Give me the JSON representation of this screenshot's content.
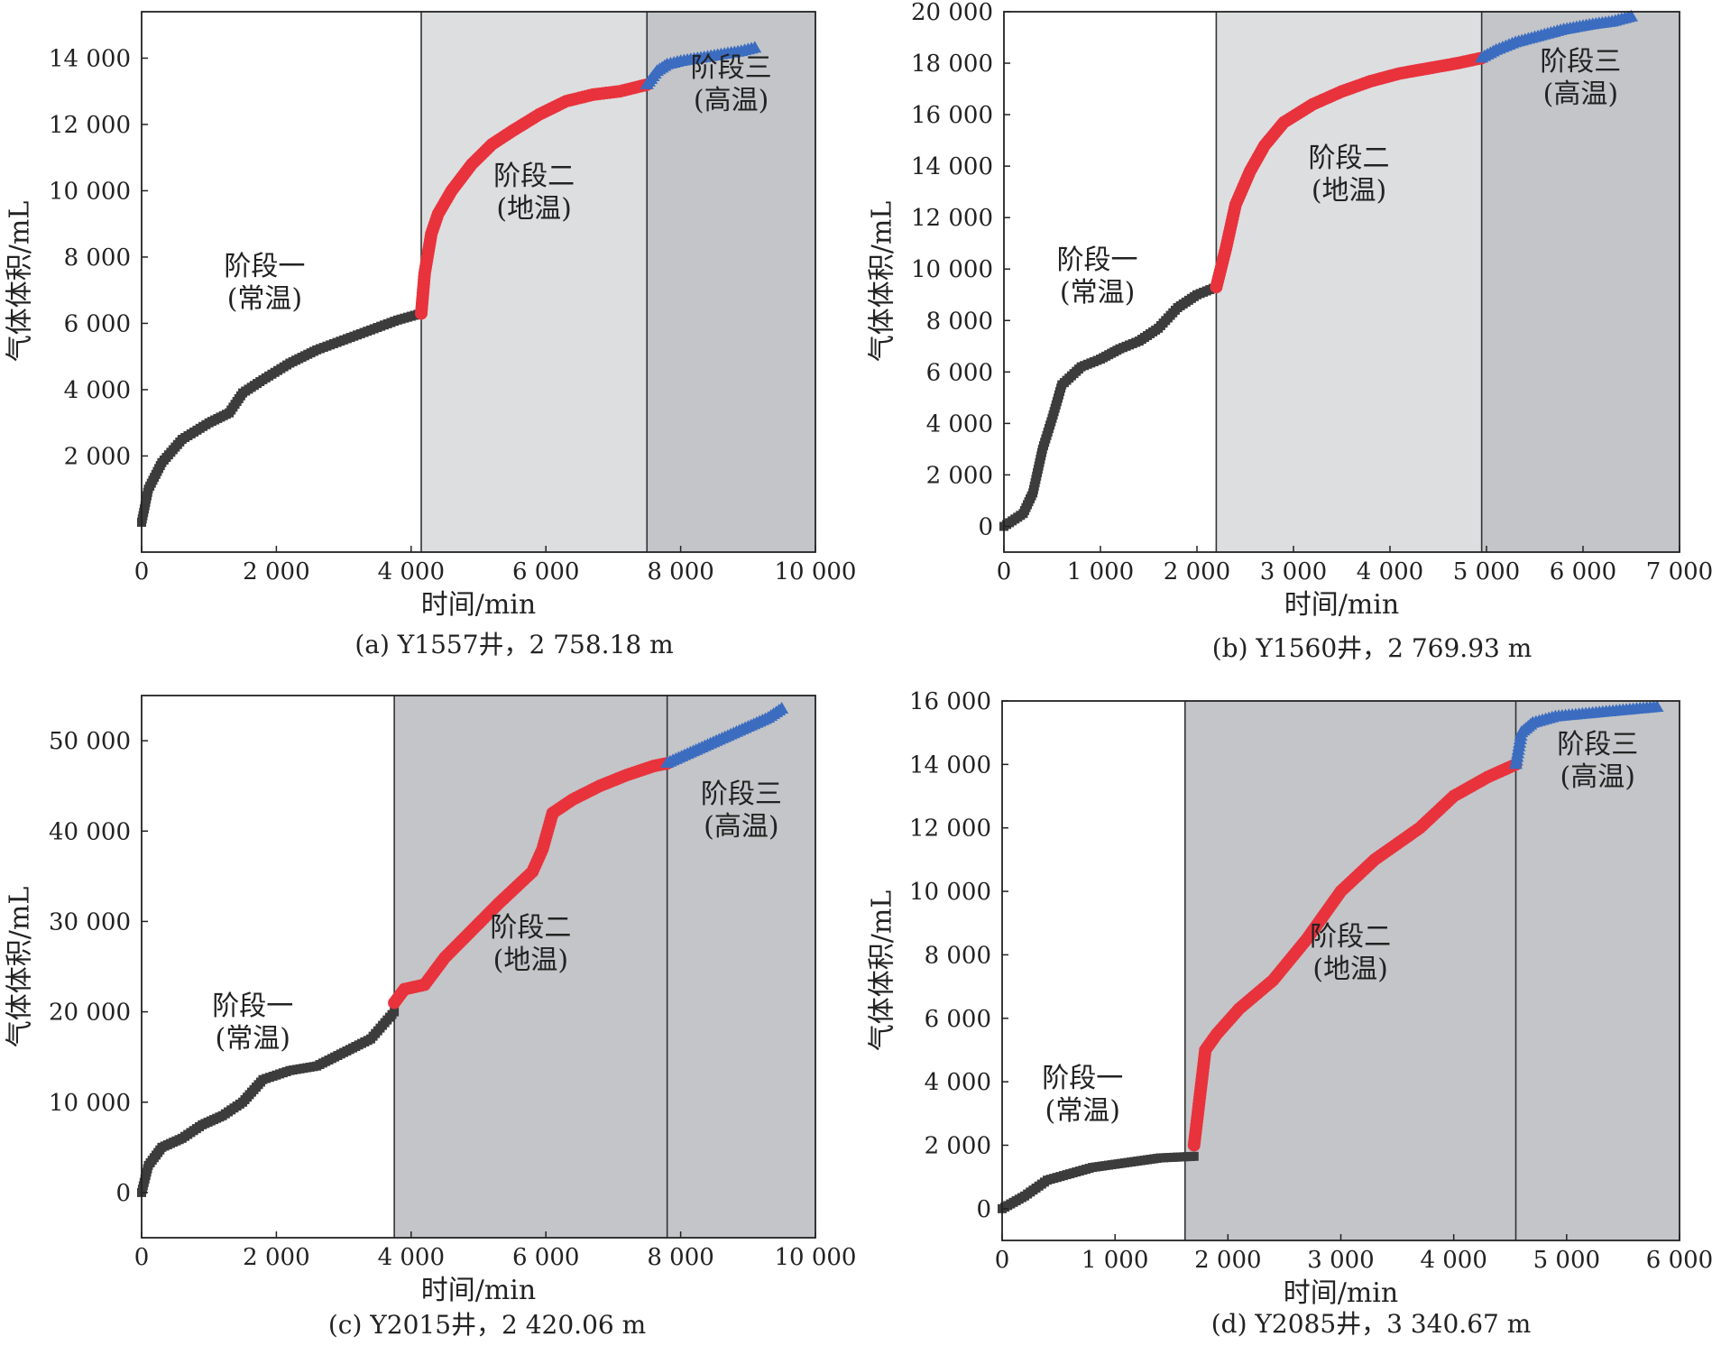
{
  "chart_data": [
    {
      "type": "scatter",
      "caption": "(a) Y1557井，2 758.18 m",
      "xlabel": "时间/min",
      "ylabel": "气体体积/mL",
      "xlim": [
        0,
        10000
      ],
      "ylim": [
        -900,
        15400
      ],
      "xticks": [
        0,
        2000,
        4000,
        6000,
        8000,
        10000
      ],
      "xtick_labels": [
        "0",
        "2 000",
        "4 000",
        "6 000",
        "8 000",
        "10 000"
      ],
      "yticks": [
        2000,
        4000,
        6000,
        8000,
        10000,
        12000,
        14000
      ],
      "ytick_labels": [
        "2 000",
        "4 000",
        "6 000",
        "8 000",
        "10 000",
        "12 000",
        "14 000"
      ],
      "stages": [
        {
          "name": "阶段一",
          "condition": "(常温)",
          "x_range": [
            0,
            4150
          ],
          "shade": "#ffffff"
        },
        {
          "name": "阶段二",
          "condition": "(地温)",
          "x_range": [
            4150,
            7500
          ],
          "shade": "#dddee0"
        },
        {
          "name": "阶段三",
          "condition": "(高温)",
          "x_range": [
            7500,
            10000
          ],
          "shade": "#c4c5c8"
        }
      ],
      "series": [
        {
          "color": "#3c3c3c",
          "marker": "square",
          "x": [
            0,
            100,
            300,
            600,
            1000,
            1300,
            1500,
            1800,
            2200,
            2600,
            3000,
            3400,
            3800,
            4150
          ],
          "y": [
            0,
            1000,
            1800,
            2500,
            3000,
            3300,
            3900,
            4300,
            4800,
            5200,
            5500,
            5800,
            6100,
            6300
          ]
        },
        {
          "color": "#e8333c",
          "marker": "circle",
          "x": [
            4150,
            4200,
            4300,
            4400,
            4600,
            4900,
            5200,
            5500,
            5900,
            6300,
            6700,
            7100,
            7500
          ],
          "y": [
            6300,
            7500,
            8700,
            9300,
            10000,
            10800,
            11400,
            11800,
            12300,
            12700,
            12900,
            13000,
            13200
          ]
        },
        {
          "color": "#3b6cc0",
          "marker": "triangle",
          "x": [
            7500,
            7650,
            7800,
            8000,
            8300,
            8600,
            8900,
            9100
          ],
          "y": [
            13200,
            13600,
            13800,
            13900,
            14000,
            14100,
            14200,
            14300
          ]
        }
      ]
    },
    {
      "type": "scatter",
      "caption": "(b) Y1560井，2 769.93 m",
      "xlabel": "时间/min",
      "ylabel": "气体体积/mL",
      "xlim": [
        0,
        7000
      ],
      "ylim": [
        -1000,
        20000
      ],
      "xticks": [
        0,
        1000,
        2000,
        3000,
        4000,
        5000,
        6000,
        7000
      ],
      "xtick_labels": [
        "0",
        "1 000",
        "2 000",
        "3 000",
        "4 000",
        "5 000",
        "6 000",
        "7 000"
      ],
      "yticks": [
        0,
        2000,
        4000,
        6000,
        8000,
        10000,
        12000,
        14000,
        16000,
        18000,
        20000
      ],
      "ytick_labels": [
        "0",
        "2 000",
        "4 000",
        "6 000",
        "8 000",
        "10 000",
        "12 000",
        "14 000",
        "16 000",
        "18 000",
        "20 000"
      ],
      "stages": [
        {
          "name": "阶段一",
          "condition": "(常温)",
          "x_range": [
            0,
            2200
          ],
          "shade": "#ffffff"
        },
        {
          "name": "阶段二",
          "condition": "(地温)",
          "x_range": [
            2200,
            4950
          ],
          "shade": "#dddee0"
        },
        {
          "name": "阶段三",
          "condition": "(高温)",
          "x_range": [
            4950,
            7000
          ],
          "shade": "#c4c5c8"
        }
      ],
      "series": [
        {
          "color": "#3c3c3c",
          "marker": "square",
          "x": [
            0,
            200,
            300,
            400,
            500,
            600,
            800,
            1000,
            1200,
            1400,
            1600,
            1800,
            2000,
            2200
          ],
          "y": [
            0,
            500,
            1300,
            3000,
            4200,
            5500,
            6200,
            6500,
            6900,
            7200,
            7700,
            8500,
            9000,
            9300
          ]
        },
        {
          "color": "#e8333c",
          "marker": "circle",
          "x": [
            2200,
            2300,
            2400,
            2550,
            2700,
            2900,
            3200,
            3500,
            3800,
            4100,
            4400,
            4700,
            4950
          ],
          "y": [
            9300,
            10800,
            12500,
            13800,
            14800,
            15700,
            16400,
            16900,
            17300,
            17600,
            17800,
            18000,
            18200
          ]
        },
        {
          "color": "#3b6cc0",
          "marker": "triangle",
          "x": [
            4950,
            5100,
            5300,
            5500,
            5800,
            6100,
            6300,
            6500
          ],
          "y": [
            18200,
            18500,
            18800,
            19000,
            19300,
            19500,
            19600,
            19800
          ]
        }
      ]
    },
    {
      "type": "scatter",
      "caption": "(c) Y2015井，2 420.06 m",
      "xlabel": "时间/min",
      "ylabel": "气体体积/mL",
      "xlim": [
        0,
        10000
      ],
      "ylim": [
        -5000,
        55000
      ],
      "xticks": [
        0,
        2000,
        4000,
        6000,
        8000,
        10000
      ],
      "xtick_labels": [
        "0",
        "2 000",
        "4 000",
        "6 000",
        "8 000",
        "10 000"
      ],
      "yticks": [
        0,
        10000,
        20000,
        30000,
        40000,
        50000
      ],
      "ytick_labels": [
        "0",
        "10 000",
        "20 000",
        "30 000",
        "40 000",
        "50 000"
      ],
      "stages": [
        {
          "name": "阶段一",
          "condition": "(常温)",
          "x_range": [
            0,
            3750
          ],
          "shade": "#ffffff"
        },
        {
          "name": "阶段二",
          "condition": "(地温)",
          "x_range": [
            3750,
            7800
          ],
          "shade": "#c4c5c8"
        },
        {
          "name": "阶段三",
          "condition": "(高温)",
          "x_range": [
            7800,
            10000
          ],
          "shade": "#c4c5c8"
        }
      ],
      "series": [
        {
          "color": "#3c3c3c",
          "marker": "square",
          "x": [
            0,
            100,
            300,
            600,
            900,
            1200,
            1500,
            1800,
            2200,
            2600,
            3000,
            3400,
            3750
          ],
          "y": [
            0,
            3000,
            5000,
            6000,
            7500,
            8500,
            10000,
            12500,
            13500,
            14000,
            15500,
            17000,
            20000
          ]
        },
        {
          "color": "#e8333c",
          "marker": "circle",
          "x": [
            3750,
            3900,
            4200,
            4500,
            4900,
            5300,
            5800,
            5950,
            6100,
            6400,
            6800,
            7200,
            7600,
            7800
          ],
          "y": [
            21000,
            22500,
            23000,
            26000,
            29000,
            32000,
            35500,
            38000,
            42000,
            43500,
            45000,
            46200,
            47200,
            47500
          ]
        },
        {
          "color": "#3b6cc0",
          "marker": "triangle",
          "x": [
            7800,
            8100,
            8400,
            8700,
            9000,
            9300,
            9500
          ],
          "y": [
            47500,
            48500,
            49500,
            50500,
            51500,
            52500,
            53500
          ]
        }
      ]
    },
    {
      "type": "scatter",
      "caption": "(d) Y2085井，3 340.67 m",
      "xlabel": "时间/min",
      "ylabel": "气体体积/mL",
      "xlim": [
        0,
        6000
      ],
      "ylim": [
        -1000,
        16000
      ],
      "xticks": [
        0,
        1000,
        2000,
        3000,
        4000,
        5000,
        6000
      ],
      "xtick_labels": [
        "0",
        "1 000",
        "2 000",
        "3 000",
        "4 000",
        "5 000",
        "6 000"
      ],
      "yticks": [
        0,
        2000,
        4000,
        6000,
        8000,
        10000,
        12000,
        14000,
        16000
      ],
      "ytick_labels": [
        "0",
        "2 000",
        "4 000",
        "6 000",
        "8 000",
        "10 000",
        "12 000",
        "14 000",
        "16 000"
      ],
      "stages": [
        {
          "name": "阶段一",
          "condition": "(常温)",
          "x_range": [
            0,
            1620
          ],
          "shade": "#ffffff"
        },
        {
          "name": "阶段二",
          "condition": "(地温)",
          "x_range": [
            1620,
            4550
          ],
          "shade": "#c4c5c8"
        },
        {
          "name": "阶段三",
          "condition": "(高温)",
          "x_range": [
            4550,
            6000
          ],
          "shade": "#c4c5c8"
        }
      ],
      "series": [
        {
          "color": "#3c3c3c",
          "marker": "square",
          "x": [
            0,
            200,
            400,
            600,
            800,
            1000,
            1200,
            1400,
            1700
          ],
          "y": [
            0,
            400,
            900,
            1100,
            1300,
            1400,
            1500,
            1600,
            1650
          ]
        },
        {
          "color": "#e8333c",
          "marker": "circle",
          "x": [
            1700,
            1750,
            1800,
            1900,
            2100,
            2400,
            2700,
            3000,
            3300,
            3700,
            4000,
            4300,
            4550
          ],
          "y": [
            2000,
            3500,
            5000,
            5500,
            6300,
            7200,
            8500,
            10000,
            11000,
            12000,
            13000,
            13600,
            14000
          ]
        },
        {
          "color": "#3b6cc0",
          "marker": "triangle",
          "x": [
            4550,
            4600,
            4700,
            4900,
            5200,
            5500,
            5800
          ],
          "y": [
            14000,
            15000,
            15300,
            15500,
            15600,
            15700,
            15800
          ]
        }
      ]
    }
  ]
}
